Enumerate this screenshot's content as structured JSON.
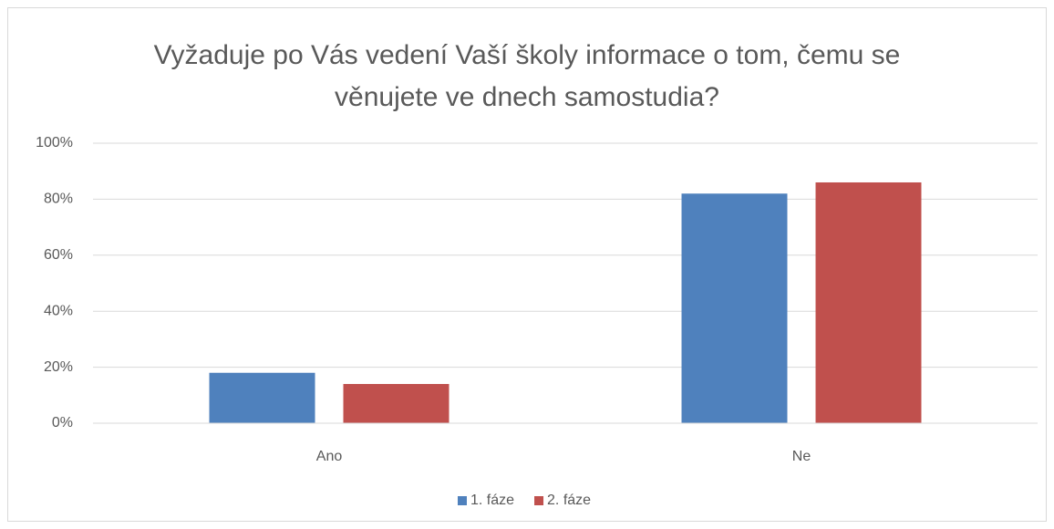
{
  "chart_data": {
    "type": "bar",
    "title": [
      "Vyžaduje po Vás vedení Vaší školy informace o tom, čemu se",
      "věnujete ve dnech samostudia?"
    ],
    "categories": [
      "Ano",
      "Ne"
    ],
    "series": [
      {
        "name": "1. fáze",
        "color": "#4f81bd",
        "values": [
          18,
          82
        ]
      },
      {
        "name": "2. fáze",
        "color": "#c0504d",
        "values": [
          14,
          86
        ]
      }
    ],
    "ylim": [
      0,
      100
    ],
    "yticks": [
      {
        "value": 0,
        "label": "0%"
      },
      {
        "value": 20,
        "label": "20%"
      },
      {
        "value": 40,
        "label": "40%"
      },
      {
        "value": 60,
        "label": "60%"
      },
      {
        "value": 80,
        "label": "80%"
      },
      {
        "value": 100,
        "label": "100%"
      }
    ],
    "grid": true,
    "legend": "bottom"
  }
}
